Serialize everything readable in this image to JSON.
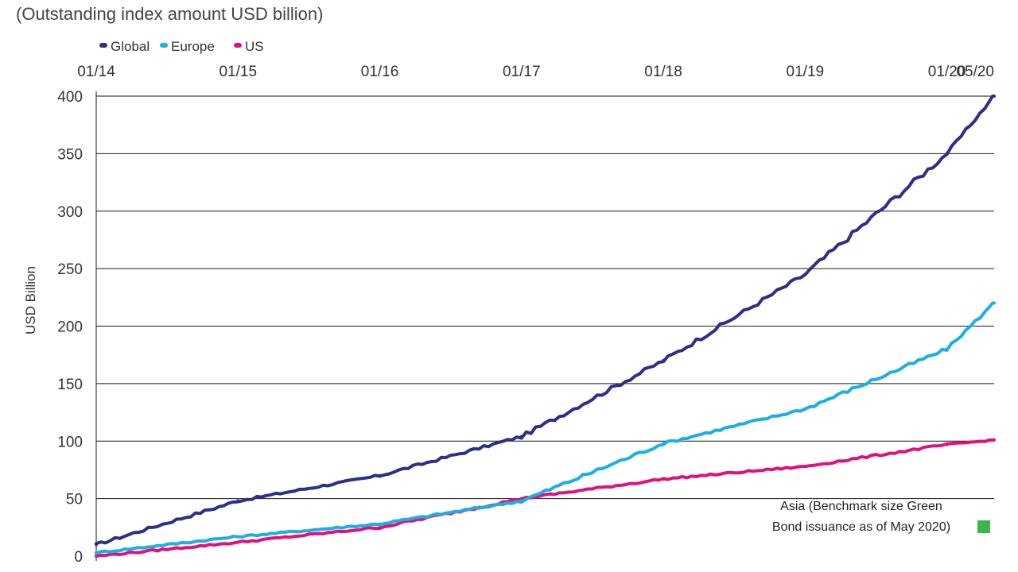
{
  "chart_data": {
    "type": "line",
    "subtitle": "(Outstanding index amount USD billion)",
    "ylabel": "USD Billion",
    "ylim": [
      0,
      400
    ],
    "yticks": [
      0,
      50,
      100,
      150,
      200,
      250,
      300,
      350,
      400
    ],
    "grid": true,
    "legend_position": "top-left",
    "x_start": "01/14",
    "x_end": "05/20",
    "xtick_labels": [
      "01/14",
      "01/15",
      "01/16",
      "01/17",
      "01/18",
      "01/19",
      "01/20",
      "05/20"
    ],
    "x": [
      "01/14",
      "01/15",
      "01/16",
      "01/17",
      "01/18",
      "01/19",
      "01/20",
      "05/20"
    ],
    "series": [
      {
        "name": "Global",
        "color": "#2d3088",
        "values": [
          10,
          48,
          70,
          104,
          170,
          245,
          350,
          400
        ]
      },
      {
        "name": "Europe",
        "color": "#1bb0e5",
        "values": [
          3,
          17,
          28,
          48,
          98,
          128,
          180,
          220
        ]
      },
      {
        "name": "US",
        "color": "#e0117c",
        "values": [
          0,
          12,
          25,
          50,
          67,
          78,
          97,
          101
        ]
      }
    ],
    "annotation": {
      "lines": [
        "Asia (Benchmark size Green",
        "Bond issuance as of May 2020)"
      ],
      "value": 1,
      "color": "#3cb54a"
    }
  }
}
